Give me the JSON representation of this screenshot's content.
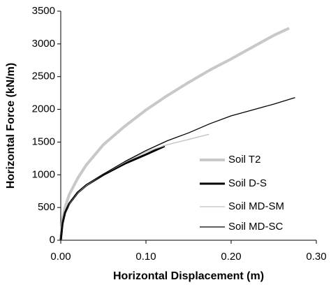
{
  "chart_data": {
    "type": "line",
    "xlabel": "Horizontal Displacement (m)",
    "ylabel": "Horizontal Force (kN/m)",
    "xlim": [
      0,
      0.3
    ],
    "ylim": [
      0,
      3500
    ],
    "xticks": [
      {
        "value": 0,
        "label": "0.00"
      },
      {
        "value": 0.1,
        "label": "0.10"
      },
      {
        "value": 0.2,
        "label": "0.20"
      },
      {
        "value": 0.3,
        "label": "0.30"
      }
    ],
    "yticks": [
      0,
      500,
      1000,
      1500,
      2000,
      2500,
      3000,
      3500
    ],
    "series": [
      {
        "name": "Soil T2",
        "color": "#c8c8c8",
        "width": 4,
        "x": [
          0,
          0.002,
          0.005,
          0.01,
          0.02,
          0.03,
          0.05,
          0.075,
          0.1,
          0.125,
          0.15,
          0.175,
          0.2,
          0.225,
          0.25,
          0.268
        ],
        "values": [
          0,
          300,
          500,
          700,
          950,
          1150,
          1460,
          1740,
          1990,
          2210,
          2410,
          2600,
          2770,
          2950,
          3130,
          3240
        ]
      },
      {
        "name": "Soil D-S",
        "color": "#000000",
        "width": 3,
        "x": [
          0,
          0.002,
          0.005,
          0.01,
          0.02,
          0.03,
          0.05,
          0.075,
          0.1,
          0.122
        ],
        "values": [
          0,
          250,
          420,
          560,
          730,
          840,
          1000,
          1170,
          1310,
          1440
        ]
      },
      {
        "name": "Soil MD-SM",
        "color": "#bdbdbd",
        "width": 1.3,
        "x": [
          0,
          0.002,
          0.005,
          0.01,
          0.02,
          0.03,
          0.05,
          0.075,
          0.1,
          0.125,
          0.15,
          0.174
        ],
        "values": [
          0,
          250,
          420,
          560,
          730,
          840,
          1010,
          1190,
          1350,
          1460,
          1540,
          1620
        ]
      },
      {
        "name": "Soil MD-SC",
        "color": "#000000",
        "width": 1.3,
        "x": [
          0,
          0.002,
          0.005,
          0.01,
          0.02,
          0.03,
          0.05,
          0.075,
          0.1,
          0.125,
          0.15,
          0.175,
          0.2,
          0.225,
          0.25,
          0.275
        ],
        "values": [
          0,
          250,
          420,
          570,
          740,
          850,
          1010,
          1200,
          1370,
          1520,
          1640,
          1780,
          1900,
          1990,
          2080,
          2180
        ]
      }
    ],
    "legend": "lower right"
  }
}
